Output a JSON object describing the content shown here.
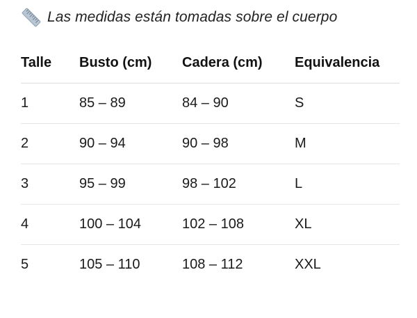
{
  "note": {
    "icon": "ruler-icon",
    "text": "Las medidas están tomadas sobre el cuerpo"
  },
  "table": {
    "headers": [
      "Talle",
      "Busto (cm)",
      "Cadera (cm)",
      "Equivalencia"
    ],
    "rows": [
      [
        "1",
        "85 – 89",
        "84 – 90",
        "S"
      ],
      [
        "2",
        "90 – 94",
        "90 – 98",
        "M"
      ],
      [
        "3",
        "95 – 99",
        "98 – 102",
        "L"
      ],
      [
        "4",
        "100 – 104",
        "102 – 108",
        "XL"
      ],
      [
        "5",
        "105 – 110",
        "108 – 112",
        "XXL"
      ]
    ]
  }
}
